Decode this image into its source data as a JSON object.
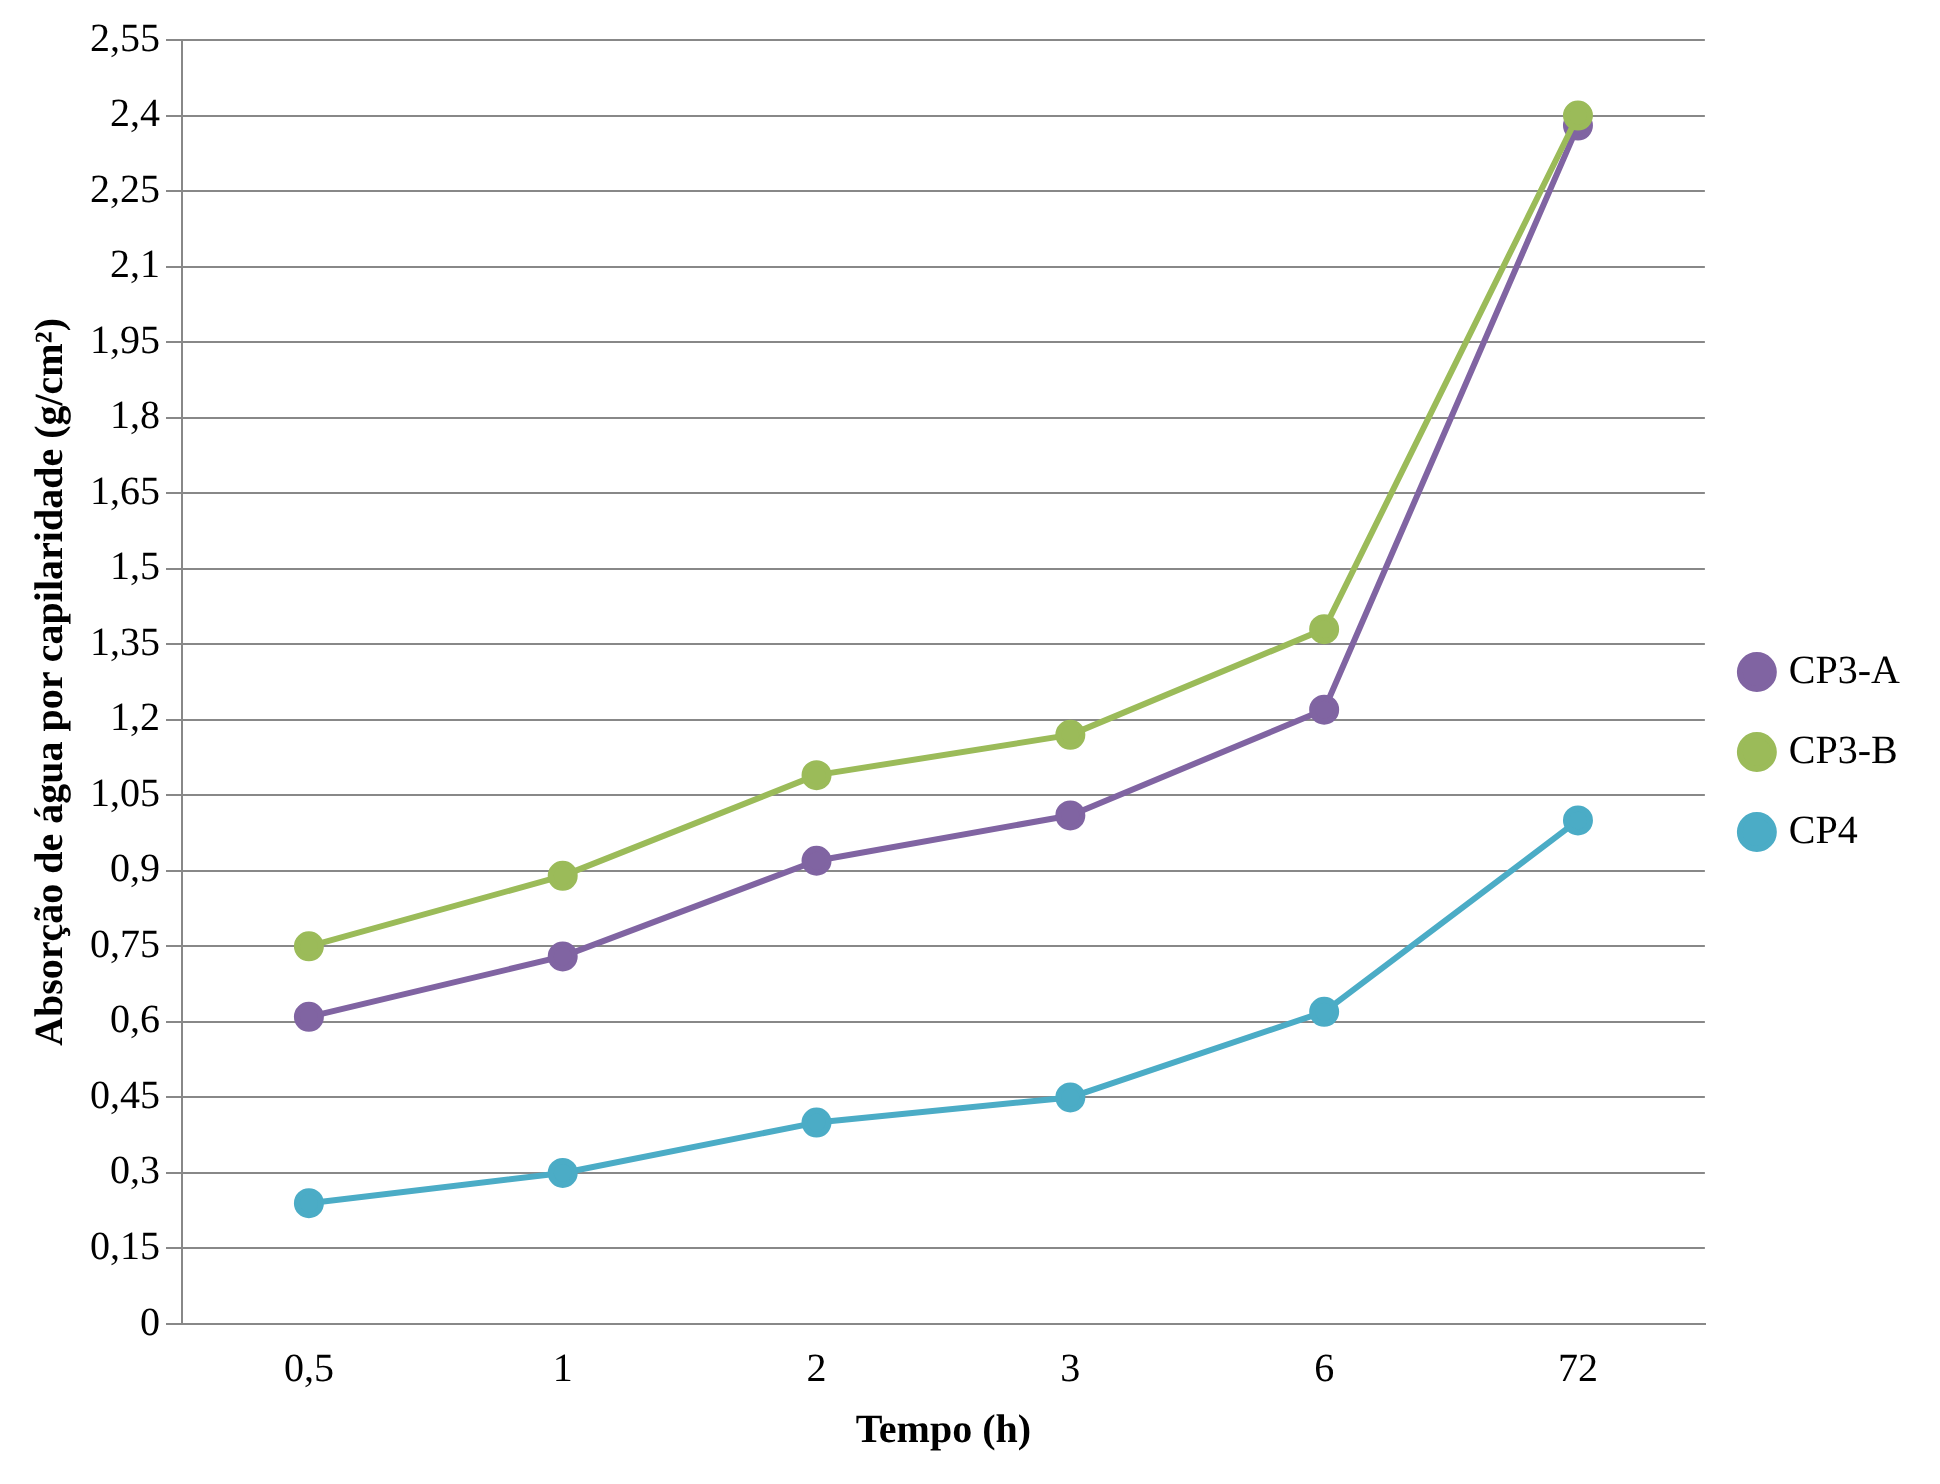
{
  "chart_data": {
    "type": "line",
    "xlabel": "Tempo (h)",
    "ylabel": "Absorção de água por capilaridade (g/cm²)",
    "categories": [
      "0,5",
      "1",
      "2",
      "3",
      "6",
      "72"
    ],
    "series": [
      {
        "name": "CP3-A",
        "color": "#8064a2",
        "values": [
          0.61,
          0.73,
          0.92,
          1.01,
          1.22,
          2.38
        ]
      },
      {
        "name": "CP3-B",
        "color": "#9bbb59",
        "values": [
          0.75,
          0.89,
          1.09,
          1.17,
          1.38,
          2.4
        ]
      },
      {
        "name": "CP4",
        "color": "#4bacc6",
        "values": [
          0.24,
          0.3,
          0.4,
          0.45,
          0.62,
          1.0
        ]
      }
    ],
    "ylim": [
      0,
      2.55
    ],
    "yticks": [
      0,
      {
        "value": 0.15,
        "label": "0,15"
      },
      {
        "value": 0.3,
        "label": "0,3"
      },
      {
        "value": 0.45,
        "label": "0,45"
      },
      {
        "value": 0.6,
        "label": "0,6"
      },
      {
        "value": 0.75,
        "label": "0,75"
      },
      {
        "value": 0.9,
        "label": "0,9"
      },
      {
        "value": 1.05,
        "label": "1,05"
      },
      {
        "value": 1.2,
        "label": "1,2"
      },
      {
        "value": 1.35,
        "label": "1,35"
      },
      {
        "value": 1.5,
        "label": "1,5"
      },
      {
        "value": 1.65,
        "label": "1,65"
      },
      {
        "value": 1.8,
        "label": "1,8"
      },
      {
        "value": 1.95,
        "label": "1,95"
      },
      {
        "value": 2.1,
        "label": "2,1"
      },
      {
        "value": 2.25,
        "label": "2,25"
      },
      {
        "value": 2.4,
        "label": "2,4"
      },
      {
        "value": 2.55,
        "label": "2,55"
      }
    ],
    "grid": "y",
    "legend": "right",
    "marker": "circle"
  }
}
